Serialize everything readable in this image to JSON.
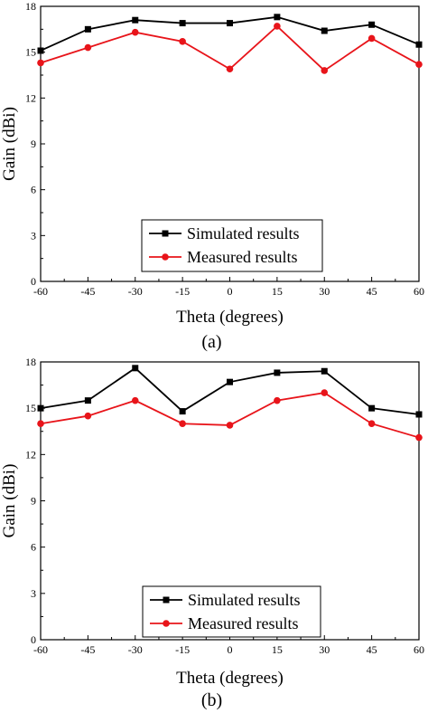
{
  "chart_data": [
    {
      "type": "line",
      "panel_label": "(a)",
      "xlabel": "Theta (degrees)",
      "ylabel": "Gain (dBi)",
      "x": [
        -60,
        -45,
        -30,
        -15,
        0,
        15,
        30,
        45,
        60
      ],
      "x_tick_labels": [
        "-60",
        "-45",
        "-30",
        "-15",
        "0",
        "15",
        "30",
        "45",
        "60"
      ],
      "y_tick_labels": [
        "0",
        "3",
        "6",
        "9",
        "12",
        "15",
        "18"
      ],
      "xlim": [
        -60,
        60
      ],
      "ylim": [
        0,
        18
      ],
      "grid": false,
      "legend_position": "lower-center",
      "series": [
        {
          "name": "Simulated results",
          "color": "#000000",
          "marker": "square",
          "values": [
            15.1,
            16.5,
            17.1,
            16.9,
            16.9,
            17.3,
            16.4,
            16.8,
            15.5
          ]
        },
        {
          "name": "Measured results",
          "color": "#e8141a",
          "marker": "circle",
          "values": [
            14.3,
            15.3,
            16.3,
            15.7,
            13.9,
            16.7,
            13.8,
            15.9,
            14.2
          ]
        }
      ]
    },
    {
      "type": "line",
      "panel_label": "(b)",
      "xlabel": "Theta (degrees)",
      "ylabel": "Gain (dBi)",
      "x": [
        -60,
        -45,
        -30,
        -15,
        0,
        15,
        30,
        45,
        60
      ],
      "x_tick_labels": [
        "-60",
        "-45",
        "-30",
        "-15",
        "0",
        "15",
        "30",
        "45",
        "60"
      ],
      "y_tick_labels": [
        "0",
        "3",
        "6",
        "9",
        "12",
        "15",
        "18"
      ],
      "xlim": [
        -60,
        60
      ],
      "ylim": [
        0,
        18
      ],
      "grid": false,
      "legend_position": "lower-center",
      "series": [
        {
          "name": "Simulated results",
          "color": "#000000",
          "marker": "square",
          "values": [
            15.0,
            15.5,
            17.6,
            14.8,
            16.7,
            17.3,
            17.4,
            15.0,
            14.6
          ]
        },
        {
          "name": "Measured results",
          "color": "#e8141a",
          "marker": "circle",
          "values": [
            14.0,
            14.5,
            15.5,
            14.0,
            13.9,
            15.5,
            16.0,
            14.0,
            13.1
          ]
        }
      ]
    }
  ]
}
